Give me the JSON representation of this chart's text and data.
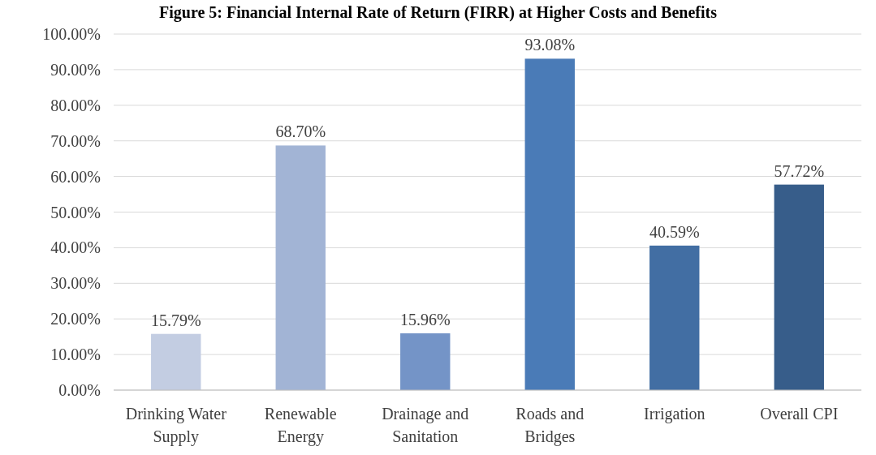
{
  "chart_data": {
    "type": "bar",
    "title": "Figure 5: Financial Internal Rate of Return (FIRR) at Higher Costs and Benefits",
    "categories": [
      "Drinking Water Supply",
      "Renewable Energy",
      "Drainage and Sanitation",
      "Roads and Bridges",
      "Irrigation",
      "Overall CPI"
    ],
    "values": [
      15.79,
      68.7,
      15.96,
      93.08,
      40.59,
      57.72
    ],
    "value_labels": [
      "15.79%",
      "68.70%",
      "15.96%",
      "93.08%",
      "40.59%",
      "57.72%"
    ],
    "colors": [
      "#c3cde2",
      "#a2b4d5",
      "#7494c7",
      "#4a7bb7",
      "#426ea3",
      "#375d8a"
    ],
    "ylim": [
      0,
      100
    ],
    "yticks": [
      {
        "value": 0,
        "label": "0.00%"
      },
      {
        "value": 10,
        "label": "10.00%"
      },
      {
        "value": 20,
        "label": "20.00%"
      },
      {
        "value": 30,
        "label": "30.00%"
      },
      {
        "value": 40,
        "label": "40.00%"
      },
      {
        "value": 50,
        "label": "50.00%"
      },
      {
        "value": 60,
        "label": "60.00%"
      },
      {
        "value": 70,
        "label": "70.00%"
      },
      {
        "value": 80,
        "label": "80.00%"
      },
      {
        "value": 90,
        "label": "90.00%"
      },
      {
        "value": 100,
        "label": "100.00%"
      }
    ],
    "grid": "y"
  }
}
